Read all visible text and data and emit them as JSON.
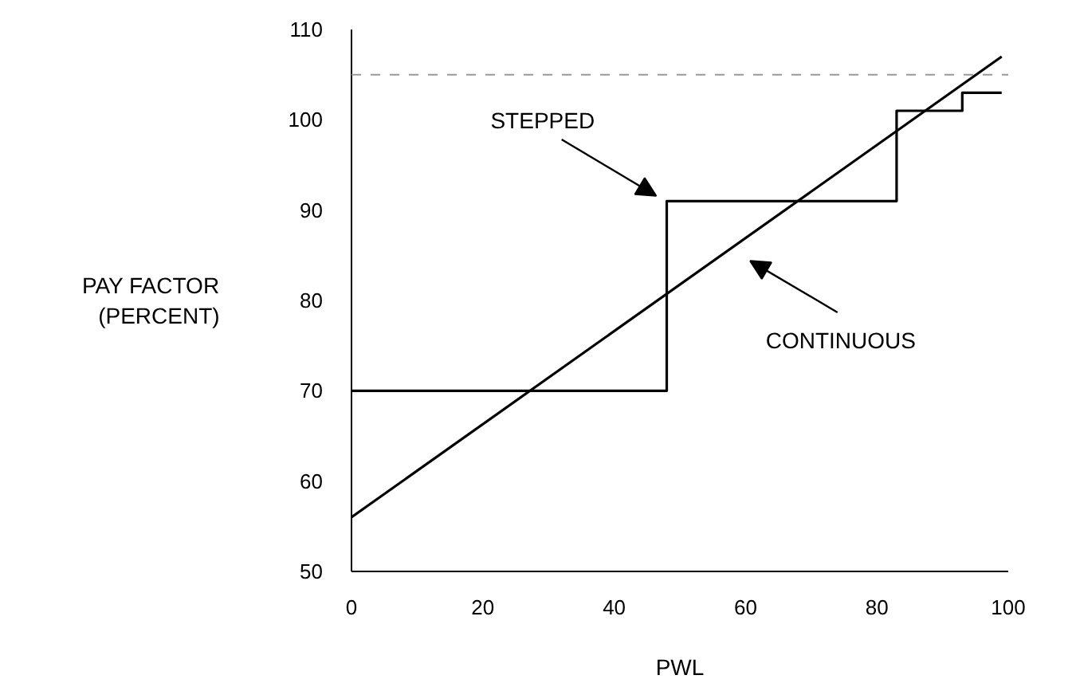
{
  "chart_data": {
    "type": "line",
    "xlabel": "PWL",
    "ylabel": "PAY FACTOR\n(PERCENT)",
    "xlim": [
      0,
      100
    ],
    "ylim": [
      50,
      110
    ],
    "xticks": [
      0,
      20,
      40,
      60,
      80,
      100
    ],
    "yticks": [
      50,
      60,
      70,
      80,
      90,
      100,
      110
    ],
    "grid": false,
    "series": [
      {
        "type": "step",
        "color": "#000000",
        "x": [
          0,
          48,
          83,
          93,
          99
        ],
        "values": [
          70,
          91,
          101,
          103,
          103
        ]
      },
      {
        "color": "#000000",
        "x": [
          0,
          99
        ],
        "values": [
          56,
          107
        ]
      }
    ],
    "ref_lines": [
      {
        "axis": "y",
        "value": 105,
        "color": "#999999",
        "line_style": "dashed"
      }
    ],
    "annotations": [
      "STEPPED",
      "CONTINUOUS"
    ]
  }
}
